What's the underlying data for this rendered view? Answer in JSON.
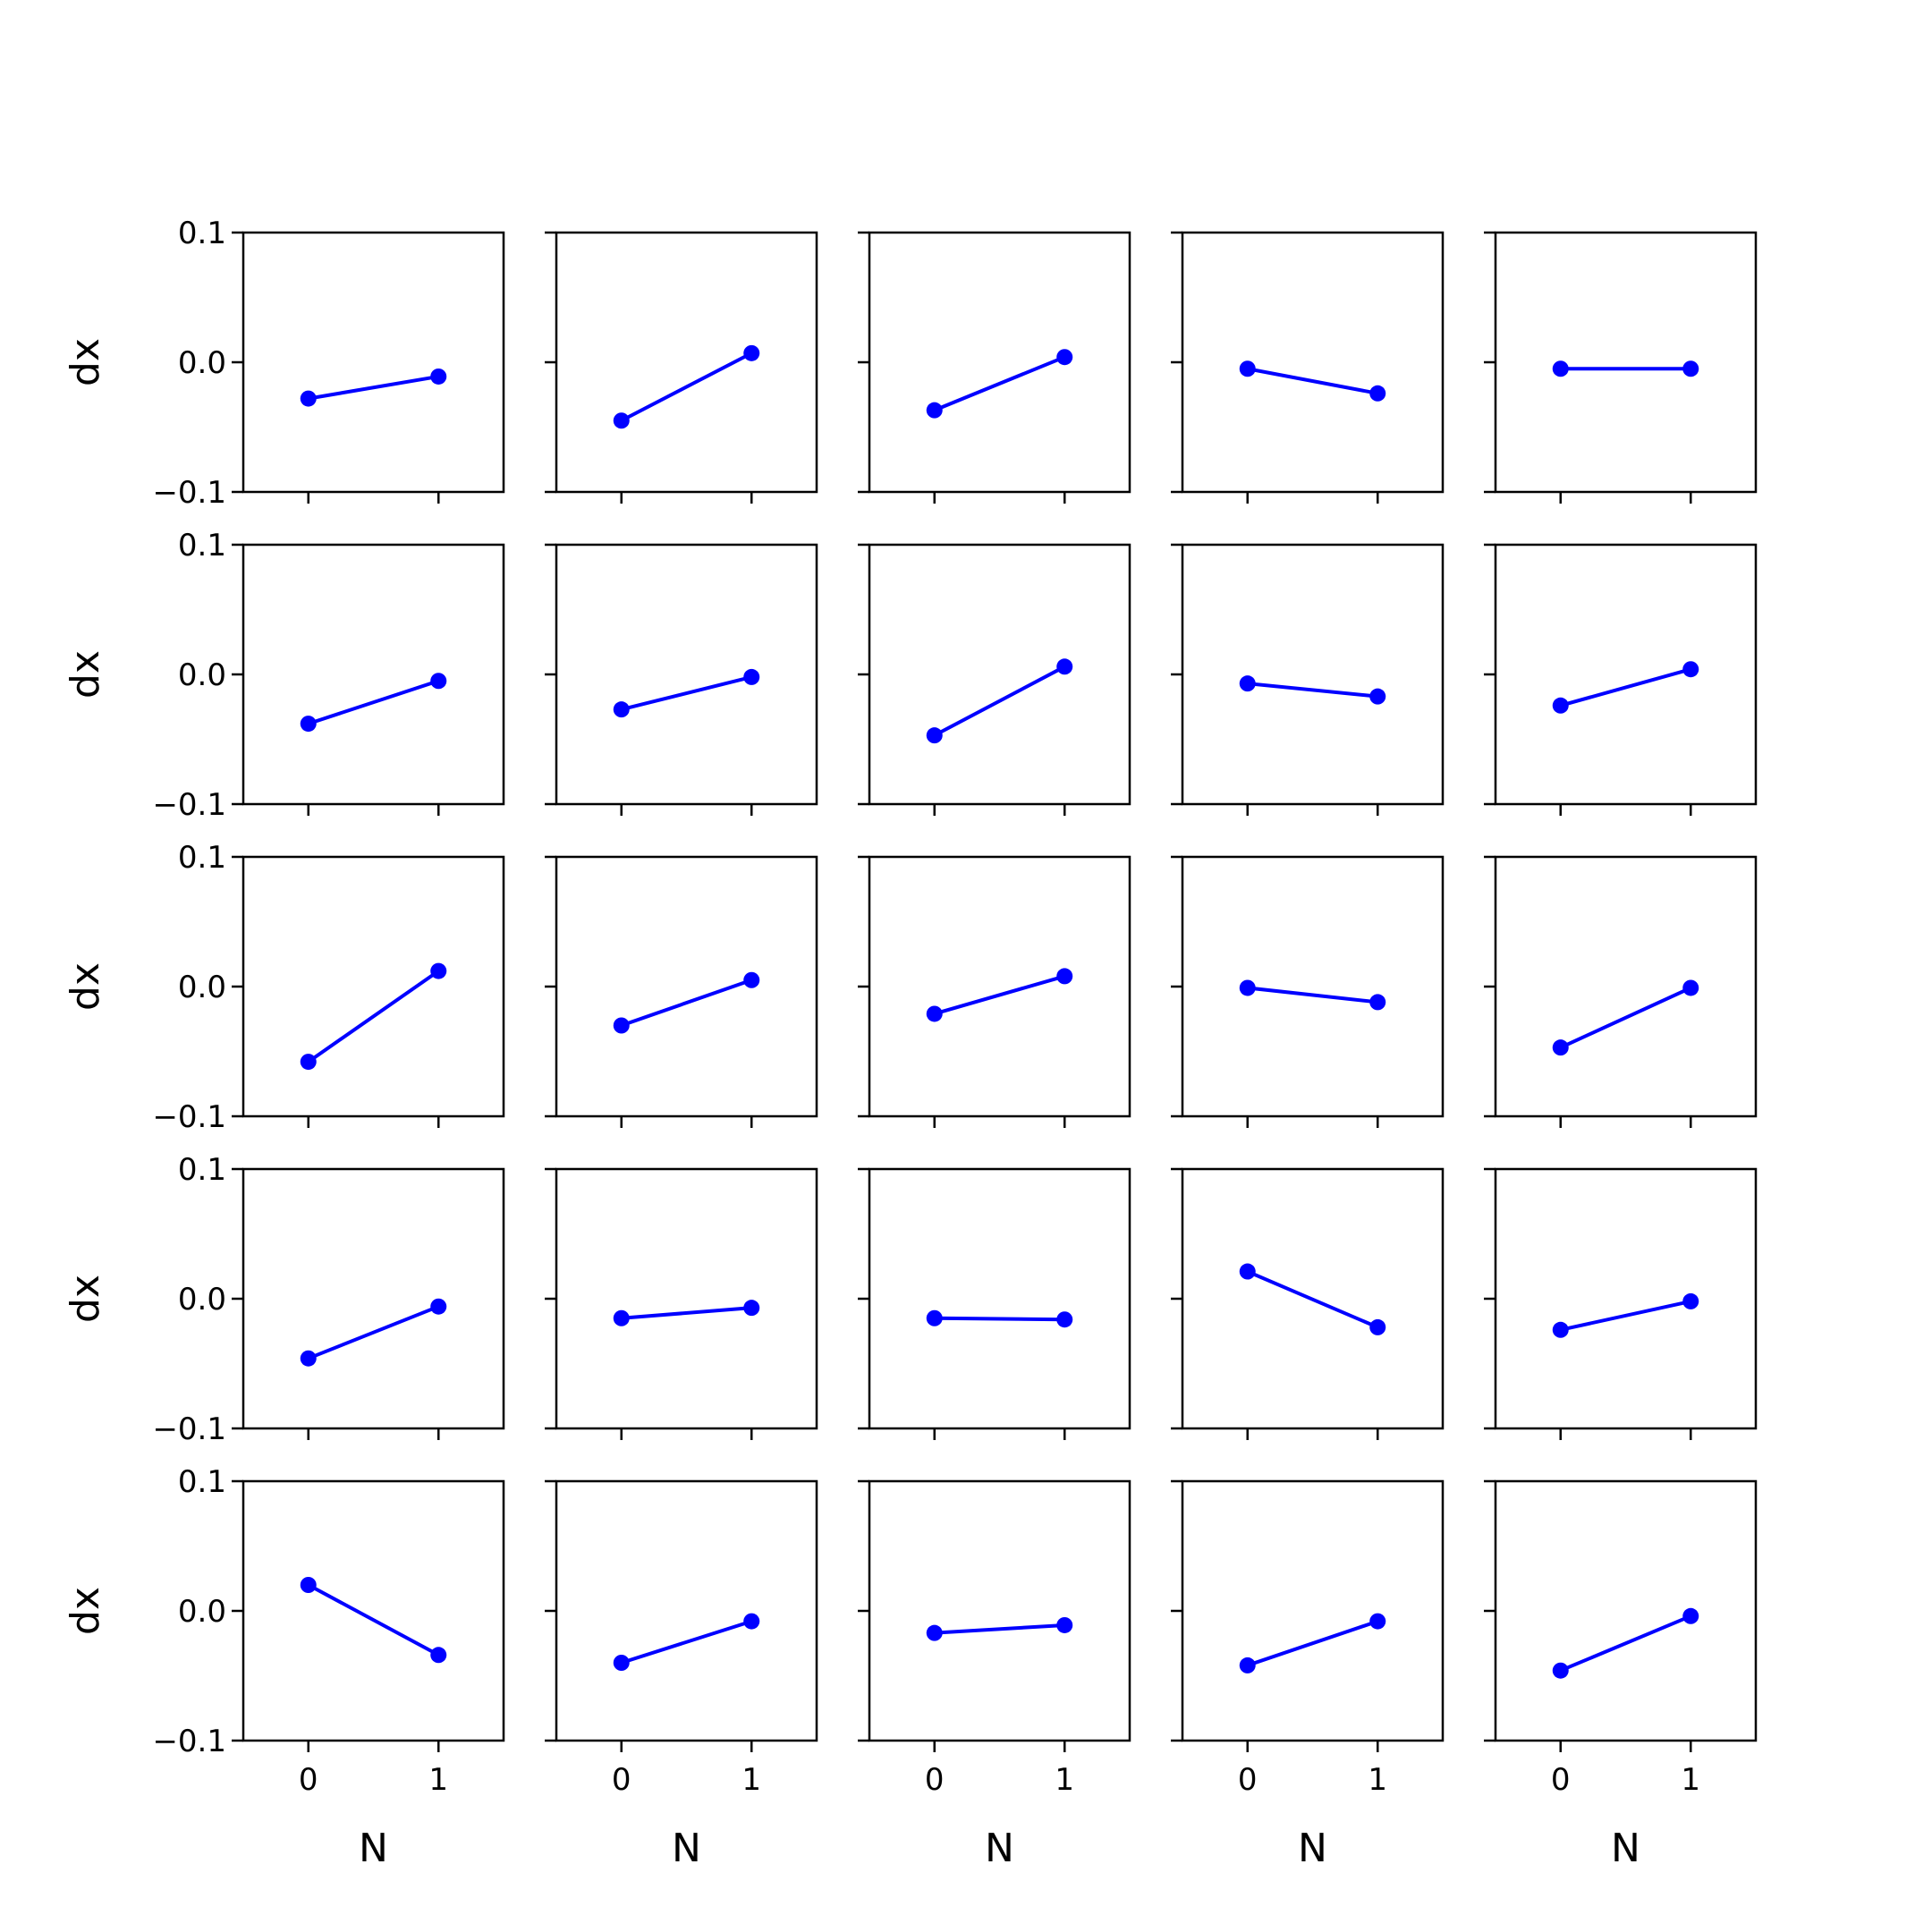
{
  "chart_data": {
    "type": "line",
    "layout": {
      "rows": 5,
      "cols": 5
    },
    "color": "#0000ff",
    "xlabel": "N",
    "ylabel": "dx",
    "x": [
      0,
      1
    ],
    "xticks": [
      "0",
      "1"
    ],
    "xlim": [
      -0.5,
      1.5
    ],
    "ylim": [
      -0.1,
      0.1
    ],
    "yticks": [
      "−0.1",
      "0.0",
      "0.1"
    ],
    "grid": false,
    "panels": [
      [
        [
          -0.028,
          -0.011
        ],
        [
          -0.045,
          0.007
        ],
        [
          -0.037,
          0.004
        ],
        [
          -0.005,
          -0.024
        ],
        [
          -0.005,
          -0.005
        ]
      ],
      [
        [
          -0.038,
          -0.005
        ],
        [
          -0.027,
          -0.002
        ],
        [
          -0.047,
          0.006
        ],
        [
          -0.007,
          -0.017
        ],
        [
          -0.024,
          0.004
        ]
      ],
      [
        [
          -0.058,
          0.012
        ],
        [
          -0.03,
          0.005
        ],
        [
          -0.021,
          0.008
        ],
        [
          -0.001,
          -0.012
        ],
        [
          -0.047,
          -0.001
        ]
      ],
      [
        [
          -0.046,
          -0.006
        ],
        [
          -0.015,
          -0.007
        ],
        [
          -0.015,
          -0.016
        ],
        [
          0.021,
          -0.022
        ],
        [
          -0.024,
          -0.002
        ]
      ],
      [
        [
          0.02,
          -0.034
        ],
        [
          -0.04,
          -0.008
        ],
        [
          -0.017,
          -0.011
        ],
        [
          -0.042,
          -0.008
        ],
        [
          -0.046,
          -0.004
        ]
      ]
    ]
  }
}
